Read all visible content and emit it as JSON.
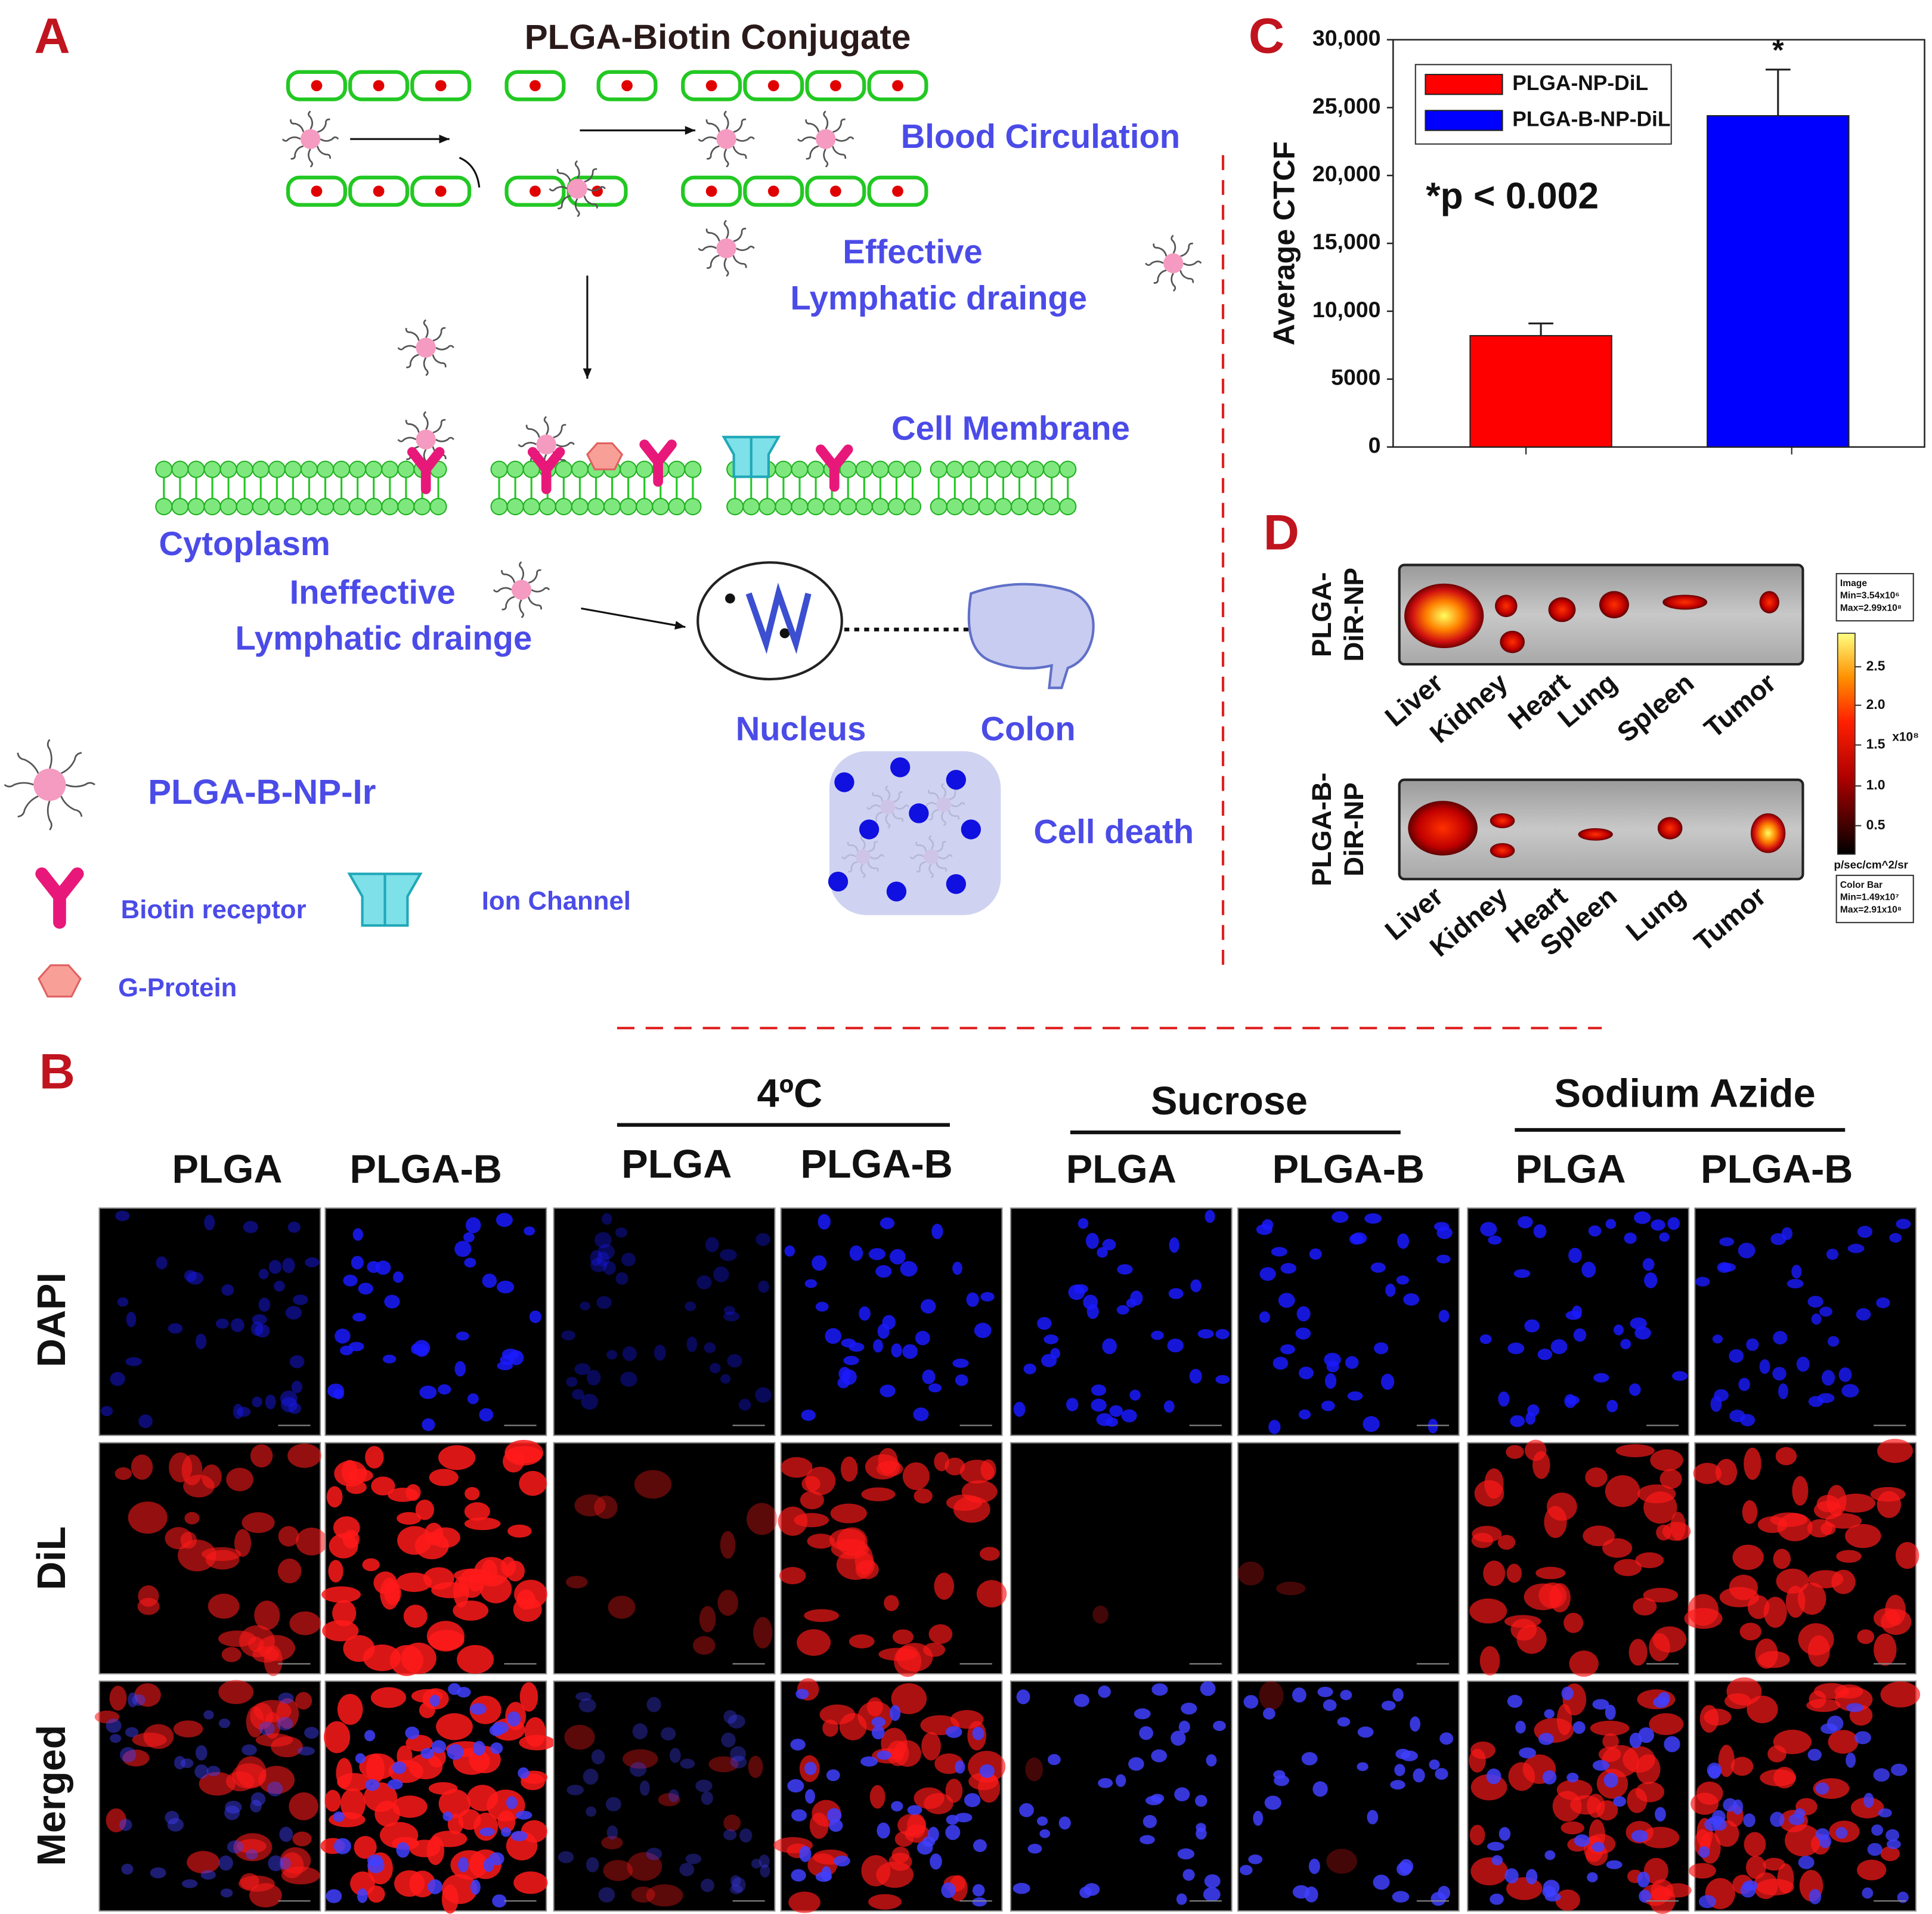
{
  "panel_labels": {
    "A": "A",
    "B": "B",
    "C": "C",
    "D": "D"
  },
  "diagram": {
    "title": "PLGA-Biotin Conjugate",
    "labels": [
      "Blood Circulation",
      "Effective",
      "Lymphatic drainge",
      "Cell Membrane",
      "Cytoplasm",
      "Ineffective",
      "Lymphatic drainge",
      "Nucleus",
      "Colon",
      "Cell death",
      "PLGA-B-NP-Ir",
      "Biotin receptor",
      "Ion Channel",
      "G-Protein"
    ]
  },
  "chart_data": {
    "type": "bar",
    "y_label": "Average CTCF",
    "annotation": "*p < 0.002",
    "significance": "*",
    "categories": [
      null,
      null
    ],
    "series": [
      {
        "name": "PLGA-NP-DiL",
        "color": "#ff0000",
        "values": [
          8200,
          null
        ],
        "errors": [
          900,
          null
        ]
      },
      {
        "name": "PLGA-B-NP-DiL",
        "color": "#0000ff",
        "values": [
          null,
          24400
        ],
        "errors": [
          null,
          3400
        ]
      }
    ],
    "ylim": [
      0,
      30000
    ],
    "yticks": [
      0,
      5000,
      {
        "value": 10000,
        "label": "10,000"
      },
      {
        "value": 15000,
        "label": "15,000"
      },
      {
        "value": 20000,
        "label": "20,000"
      },
      {
        "value": 25000,
        "label": "25,000"
      },
      {
        "value": 30000,
        "label": "30,000"
      }
    ],
    "legend": "upper left"
  },
  "imaging": {
    "rows": [
      {
        "label_lines": [
          "PLGA-",
          "DiR-NP"
        ],
        "organs": [
          "Liver",
          "Kidney",
          "Heart",
          "Lung",
          "Spleen",
          "Tumor"
        ]
      },
      {
        "label_lines": [
          "PLGA-B-",
          "DiR-NP"
        ],
        "organs": [
          "Liver",
          "Kidney",
          "Heart",
          "Spleen",
          "Lung",
          "Tumor"
        ]
      }
    ],
    "legend": {
      "image": [
        "Image",
        "Min=3.54x10⁶",
        "Max=2.99x10⁸"
      ],
      "colorbar_ticks": [
        "2.5",
        "2.0",
        "1.5",
        "1.0",
        "0.5"
      ],
      "unit": "x10⁸",
      "scale": "p/sec/cm^2/sr",
      "color_bar": [
        "Color Bar",
        "Min=1.49x10⁷",
        "Max=2.91x10⁸"
      ]
    }
  },
  "microscopy": {
    "groups": [
      "4ºC",
      "Sucrose",
      "Sodium Azide"
    ],
    "columns": [
      "PLGA",
      "PLGA-B",
      "PLGA",
      "PLGA-B",
      "PLGA",
      "PLGA-B",
      "PLGA",
      "PLGA-B"
    ],
    "rows": [
      "DAPI",
      "DiL",
      "Merged"
    ]
  }
}
